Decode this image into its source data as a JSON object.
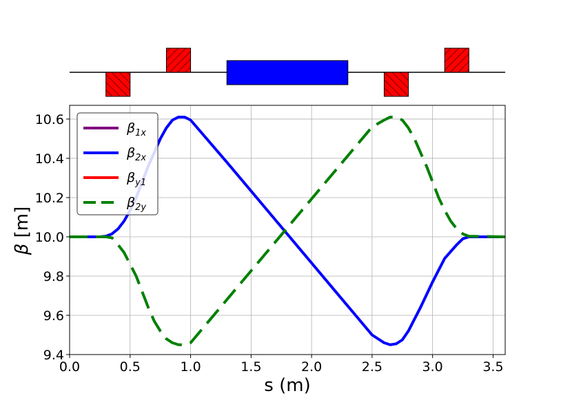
{
  "chart_data": {
    "type": "line",
    "title": "",
    "xlabel": "s (m)",
    "ylabel_symbol": "β",
    "ylabel_unit": "[m]",
    "xlim": [
      0.0,
      3.6
    ],
    "ylim": [
      9.4,
      10.67
    ],
    "xticks": [
      "0.0",
      "0.5",
      "1.0",
      "1.5",
      "2.0",
      "2.5",
      "3.0",
      "3.5"
    ],
    "yticks": [
      "9.4",
      "9.6",
      "9.8",
      "10.0",
      "10.2",
      "10.4",
      "10.6"
    ],
    "grid": true,
    "legend_position": "top-left",
    "legend": [
      {
        "symbol": "β",
        "sub": "1x",
        "color": "#800080",
        "dash": "solid"
      },
      {
        "symbol": "β",
        "sub": "2x",
        "color": "#0000ff",
        "dash": "solid"
      },
      {
        "symbol": "β",
        "sub": "y1",
        "color": "#ff0000",
        "dash": "solid"
      },
      {
        "symbol": "β",
        "sub": "2y",
        "color": "#008000",
        "dash": "dashed"
      }
    ],
    "series": [
      {
        "legend_index": 1,
        "color": "#0000ff",
        "dash": "solid",
        "x": [
          0.0,
          0.25,
          0.3,
          0.35,
          0.4,
          0.45,
          0.5,
          0.55,
          0.6,
          0.65,
          0.7,
          0.75,
          0.8,
          0.85,
          0.9,
          0.95,
          1.0,
          1.3,
          1.6,
          1.9,
          2.2,
          2.5,
          2.6,
          2.65,
          2.7,
          2.75,
          2.8,
          2.9,
          3.0,
          3.1,
          3.2,
          3.25,
          3.3,
          3.6
        ],
        "y": [
          10.0,
          10.0,
          10.003,
          10.015,
          10.04,
          10.08,
          10.135,
          10.2,
          10.28,
          10.36,
          10.43,
          10.5,
          10.555,
          10.595,
          10.61,
          10.61,
          10.595,
          10.38,
          10.16,
          9.94,
          9.72,
          9.5,
          9.46,
          9.45,
          9.455,
          9.475,
          9.52,
          9.64,
          9.77,
          9.89,
          9.96,
          9.99,
          10.0,
          10.0
        ]
      },
      {
        "legend_index": 3,
        "color": "#008000",
        "dash": "dashed",
        "x": [
          0.0,
          0.3,
          0.35,
          0.4,
          0.45,
          0.5,
          0.55,
          0.6,
          0.65,
          0.7,
          0.75,
          0.8,
          0.85,
          0.9,
          0.95,
          1.0,
          1.3,
          1.6,
          1.9,
          2.2,
          2.5,
          2.6,
          2.65,
          2.7,
          2.75,
          2.8,
          2.85,
          2.9,
          2.95,
          3.0,
          3.05,
          3.1,
          3.15,
          3.2,
          3.25,
          3.3,
          3.6
        ],
        "y": [
          10.0,
          10.0,
          9.995,
          9.96,
          9.92,
          9.86,
          9.8,
          9.72,
          9.64,
          9.57,
          9.52,
          9.48,
          9.46,
          9.45,
          9.45,
          9.46,
          9.68,
          9.9,
          10.12,
          10.34,
          10.56,
          10.595,
          10.61,
          10.61,
          10.595,
          10.555,
          10.5,
          10.43,
          10.36,
          10.28,
          10.2,
          10.135,
          10.08,
          10.04,
          10.015,
          10.003,
          10.0
        ]
      }
    ],
    "lattice": {
      "quadrupoles": [
        {
          "s_start": 0.3,
          "s_end": 0.5,
          "side": "below"
        },
        {
          "s_start": 0.8,
          "s_end": 1.0,
          "side": "above"
        },
        {
          "s_start": 2.6,
          "s_end": 2.8,
          "side": "below"
        },
        {
          "s_start": 3.1,
          "s_end": 3.3,
          "side": "above"
        }
      ],
      "solenoid": {
        "s_start": 1.3,
        "s_end": 2.3
      },
      "quad_color": "#ff0000",
      "solenoid_color": "#0000ff"
    }
  }
}
